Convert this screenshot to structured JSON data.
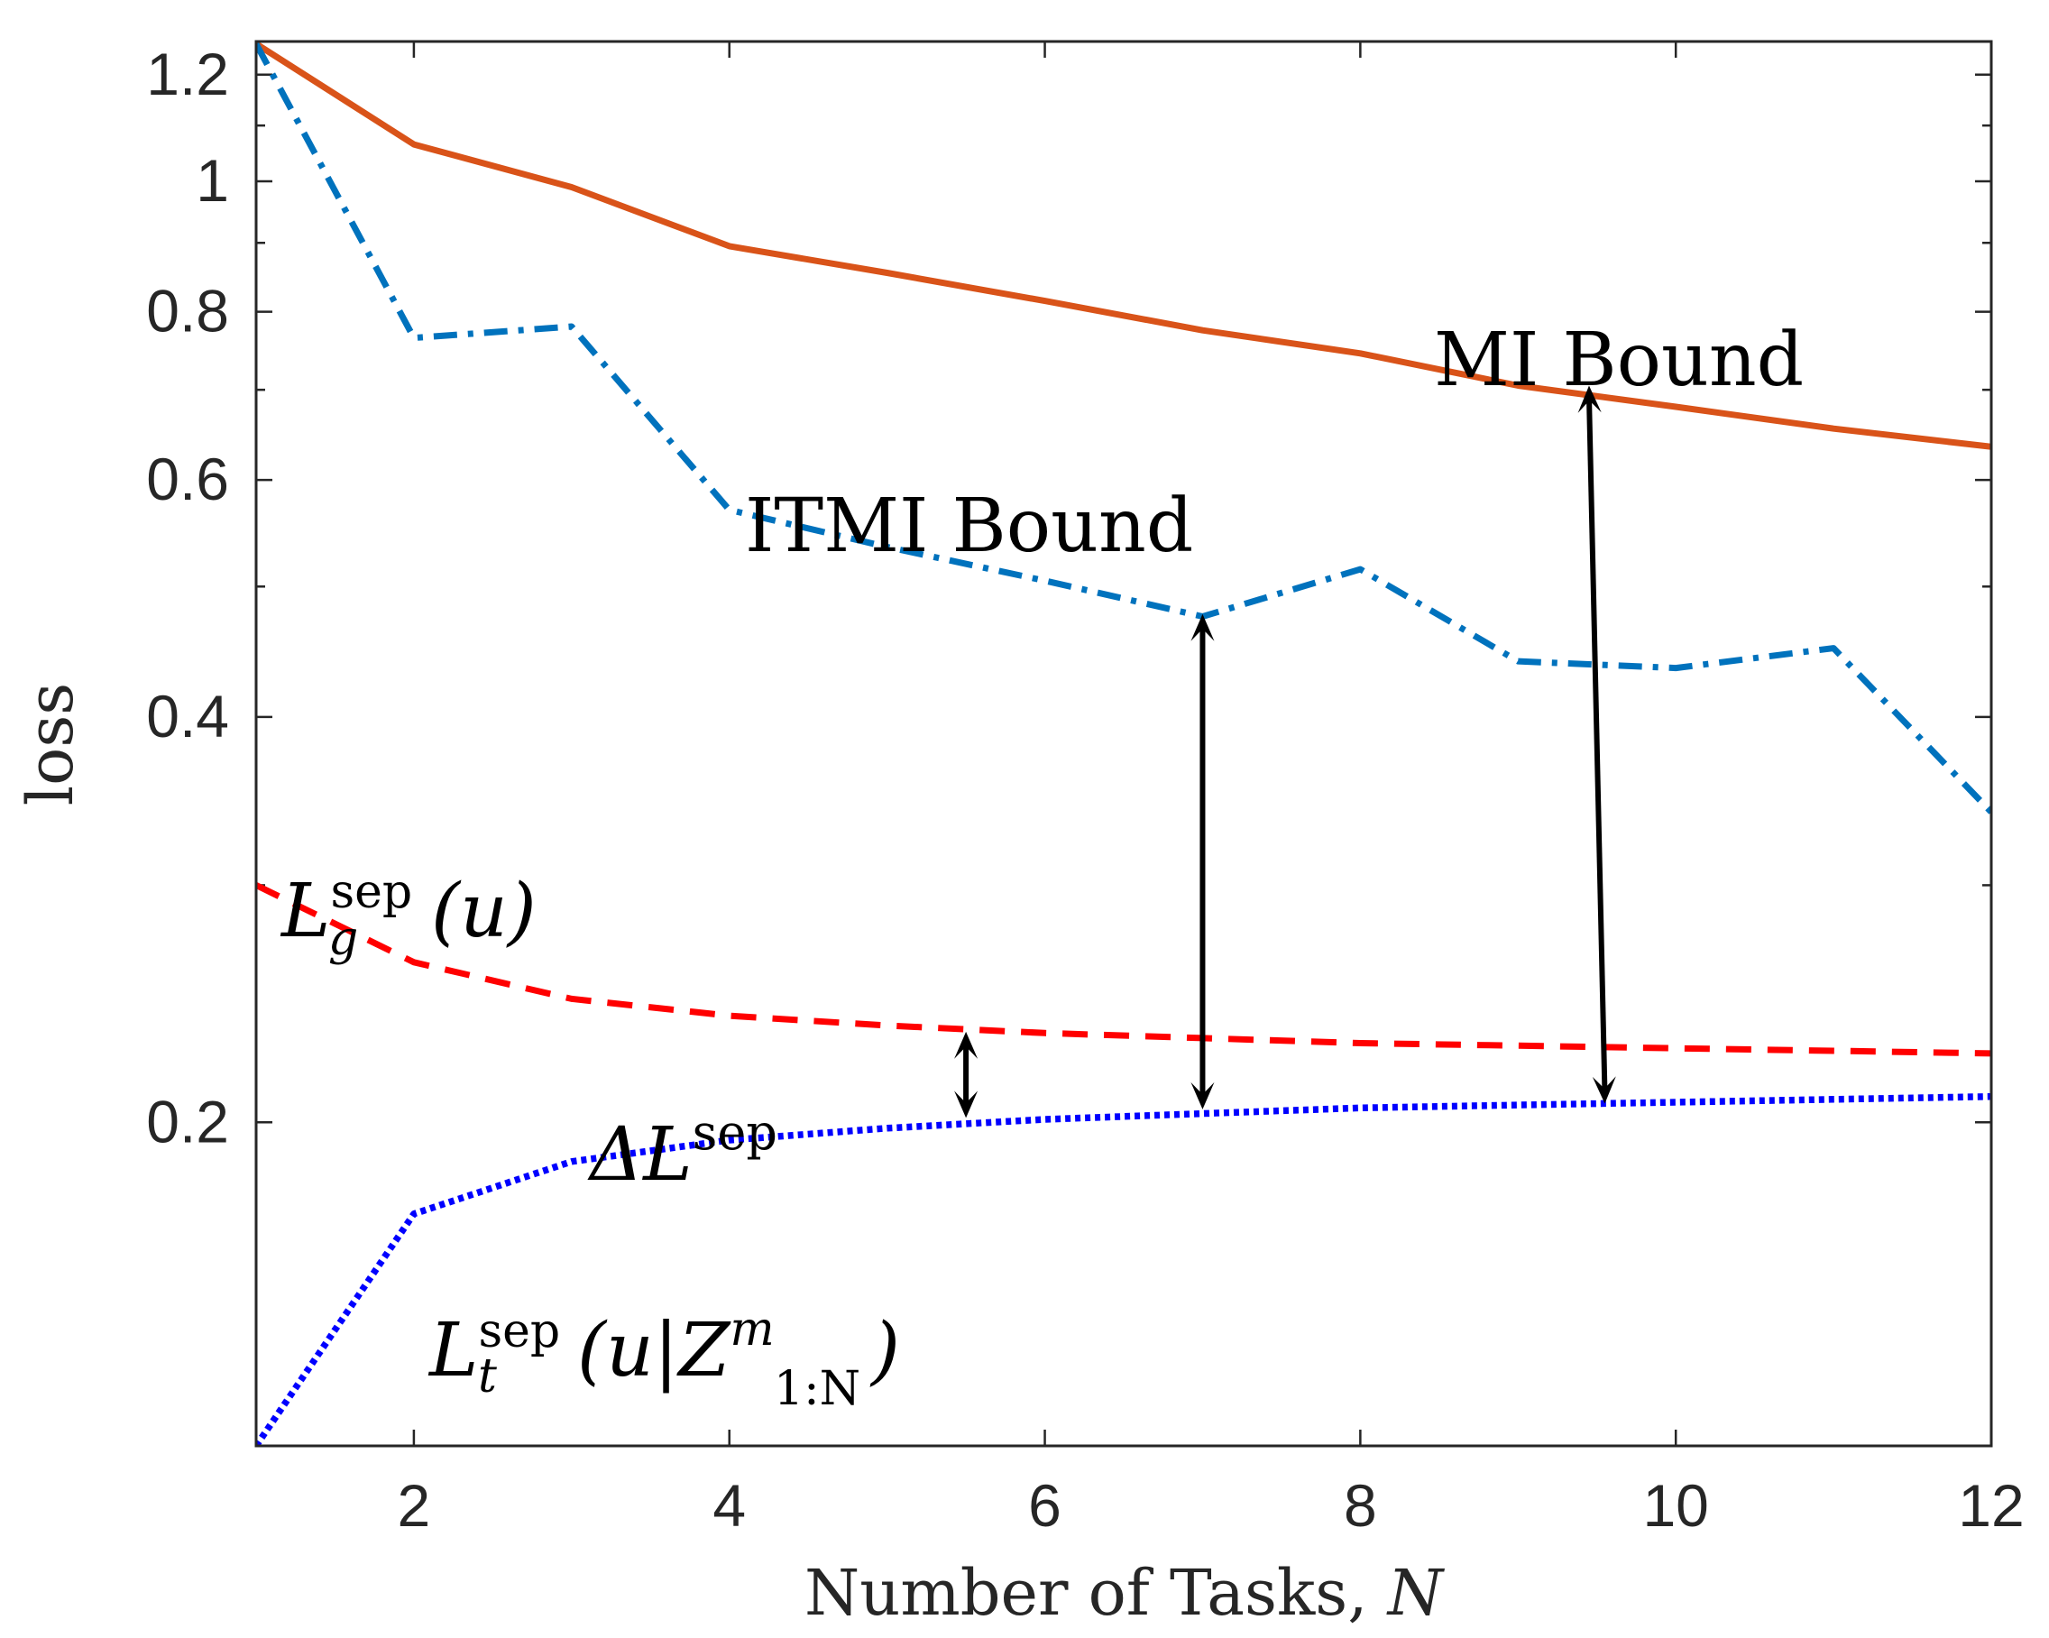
{
  "chart_data": {
    "type": "line",
    "xlabel": "Number of Tasks, N",
    "ylabel": "loss",
    "xlim": [
      1,
      12
    ],
    "ylim": [
      0.115,
      1.27
    ],
    "yscale": "log",
    "xticks": [
      2,
      4,
      6,
      8,
      10,
      12
    ],
    "yticks": [
      0.2,
      0.4,
      0.6,
      0.8,
      1,
      1.2
    ],
    "ytick_labels": [
      "0.2",
      "0.4",
      "0.6",
      "0.8",
      "1",
      "1.2"
    ],
    "grid": false,
    "x": [
      1,
      2,
      3,
      4,
      5,
      6,
      7,
      8,
      9,
      10,
      11,
      12
    ],
    "series": [
      {
        "name": "MI Bound",
        "color": "#D95319",
        "style": "solid",
        "values": [
          1.265,
          1.065,
          0.99,
          0.895,
          0.855,
          0.815,
          0.775,
          0.745,
          0.705,
          0.68,
          0.655,
          0.635
        ]
      },
      {
        "name": "ITMI Bound",
        "color": "#0072BD",
        "style": "dashdot",
        "values": [
          1.265,
          0.765,
          0.78,
          0.57,
          0.535,
          0.505,
          0.475,
          0.515,
          0.44,
          0.435,
          0.45,
          0.34
        ]
      },
      {
        "name": "L_g^sep(u)",
        "color": "#FF0000",
        "style": "dashed",
        "values": [
          0.3,
          0.263,
          0.247,
          0.24,
          0.236,
          0.233,
          0.231,
          0.229,
          0.228,
          0.227,
          0.226,
          0.225
        ]
      },
      {
        "name": "L_t^sep(u|Z_1:N^m)",
        "color": "#0000FF",
        "style": "dotted",
        "values": [
          0.115,
          0.171,
          0.187,
          0.194,
          0.198,
          0.201,
          0.203,
          0.205,
          0.206,
          0.207,
          0.208,
          0.209
        ]
      }
    ],
    "annotations": {
      "mi_bound": "MI Bound",
      "itmi_bound": "ITMI Bound",
      "delta_loss": {
        "prefix": "ΔL",
        "sup": "sep"
      },
      "lg_label": {
        "main": "L",
        "sub": "g",
        "sup": "sep",
        "arg": "(u)"
      },
      "lt_label": {
        "main": "L",
        "sub": "t",
        "sup": "sep",
        "arg_open": "(u|Z",
        "z_sup": "m",
        "z_sub": "1:N",
        "arg_close": ")"
      }
    },
    "arrows": [
      {
        "x1": 5.5,
        "y1": 0.2335,
        "x2": 5.5,
        "y2": 0.2015
      },
      {
        "x1": 7.0,
        "y1": 0.477,
        "x2": 7.0,
        "y2": 0.2045
      },
      {
        "x1": 9.45,
        "y1": 0.705,
        "x2": 9.55,
        "y2": 0.2065
      }
    ]
  }
}
